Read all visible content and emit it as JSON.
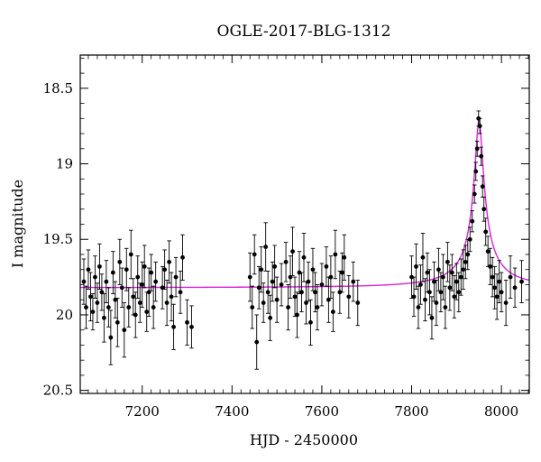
{
  "chart_data": {
    "type": "scatter",
    "title": "OGLE-2017-BLG-1312",
    "xlabel": "HJD - 2450000",
    "ylabel": "I magnitude",
    "xlim": [
      7062,
      8062
    ],
    "ylim": [
      20.52,
      18.28
    ],
    "y_inverted": true,
    "x_ticks": [
      "7200",
      "7400",
      "7600",
      "7800",
      "8000"
    ],
    "y_ticks": [
      "18.5",
      "19",
      "19.5",
      "20",
      "20.5"
    ],
    "grid": false,
    "colors": {
      "data": "#000000",
      "model": "#dd22dd",
      "axes": "#000000"
    },
    "series": [
      {
        "points": [
          {
            "x": 7070,
            "y": 19.78,
            "err": 0.15
          },
          {
            "x": 7075,
            "y": 19.95,
            "err": 0.14
          },
          {
            "x": 7080,
            "y": 19.7,
            "err": 0.13
          },
          {
            "x": 7085,
            "y": 19.88,
            "err": 0.16
          },
          {
            "x": 7090,
            "y": 19.98,
            "err": 0.12
          },
          {
            "x": 7095,
            "y": 19.75,
            "err": 0.14
          },
          {
            "x": 7100,
            "y": 19.92,
            "err": 0.13
          },
          {
            "x": 7105,
            "y": 19.68,
            "err": 0.15
          },
          {
            "x": 7110,
            "y": 19.85,
            "err": 0.12
          },
          {
            "x": 7115,
            "y": 20.02,
            "err": 0.16
          },
          {
            "x": 7120,
            "y": 19.78,
            "err": 0.14
          },
          {
            "x": 7125,
            "y": 19.95,
            "err": 0.13
          },
          {
            "x": 7130,
            "y": 20.15,
            "err": 0.18
          },
          {
            "x": 7135,
            "y": 19.72,
            "err": 0.14
          },
          {
            "x": 7140,
            "y": 19.9,
            "err": 0.12
          },
          {
            "x": 7145,
            "y": 20.05,
            "err": 0.16
          },
          {
            "x": 7150,
            "y": 19.65,
            "err": 0.15
          },
          {
            "x": 7155,
            "y": 19.82,
            "err": 0.13
          },
          {
            "x": 7160,
            "y": 20.1,
            "err": 0.18
          },
          {
            "x": 7165,
            "y": 19.7,
            "err": 0.14
          },
          {
            "x": 7170,
            "y": 19.95,
            "err": 0.13
          },
          {
            "x": 7175,
            "y": 19.6,
            "err": 0.16
          },
          {
            "x": 7180,
            "y": 19.88,
            "err": 0.12
          },
          {
            "x": 7185,
            "y": 20.0,
            "err": 0.15
          },
          {
            "x": 7190,
            "y": 19.75,
            "err": 0.14
          },
          {
            "x": 7195,
            "y": 19.92,
            "err": 0.13
          },
          {
            "x": 7200,
            "y": 19.8,
            "err": 0.15
          },
          {
            "x": 7205,
            "y": 19.68,
            "err": 0.14
          },
          {
            "x": 7210,
            "y": 19.98,
            "err": 0.13
          },
          {
            "x": 7215,
            "y": 19.85,
            "err": 0.16
          },
          {
            "x": 7220,
            "y": 19.72,
            "err": 0.12
          },
          {
            "x": 7225,
            "y": 19.95,
            "err": 0.14
          },
          {
            "x": 7230,
            "y": 19.78,
            "err": 0.13
          },
          {
            "x": 7245,
            "y": 19.82,
            "err": 0.14
          },
          {
            "x": 7250,
            "y": 19.7,
            "err": 0.13
          },
          {
            "x": 7255,
            "y": 19.92,
            "err": 0.15
          },
          {
            "x": 7260,
            "y": 19.65,
            "err": 0.14
          },
          {
            "x": 7265,
            "y": 19.88,
            "err": 0.16
          },
          {
            "x": 7270,
            "y": 20.08,
            "err": 0.15
          },
          {
            "x": 7275,
            "y": 19.75,
            "err": 0.13
          },
          {
            "x": 7285,
            "y": 19.85,
            "err": 0.14
          },
          {
            "x": 7290,
            "y": 19.62,
            "err": 0.15
          },
          {
            "x": 7300,
            "y": 20.05,
            "err": 0.15
          },
          {
            "x": 7310,
            "y": 20.08,
            "err": 0.14
          },
          {
            "x": 7440,
            "y": 19.75,
            "err": 0.16
          },
          {
            "x": 7445,
            "y": 19.95,
            "err": 0.14
          },
          {
            "x": 7450,
            "y": 19.6,
            "err": 0.13
          },
          {
            "x": 7455,
            "y": 20.18,
            "err": 0.18
          },
          {
            "x": 7460,
            "y": 19.82,
            "err": 0.14
          },
          {
            "x": 7465,
            "y": 19.7,
            "err": 0.15
          },
          {
            "x": 7470,
            "y": 19.92,
            "err": 0.13
          },
          {
            "x": 7475,
            "y": 19.55,
            "err": 0.16
          },
          {
            "x": 7480,
            "y": 19.85,
            "err": 0.14
          },
          {
            "x": 7485,
            "y": 20.02,
            "err": 0.15
          },
          {
            "x": 7490,
            "y": 19.78,
            "err": 0.13
          },
          {
            "x": 7495,
            "y": 19.68,
            "err": 0.14
          },
          {
            "x": 7500,
            "y": 19.9,
            "err": 0.15
          },
          {
            "x": 7510,
            "y": 19.8,
            "err": 0.14
          },
          {
            "x": 7520,
            "y": 19.65,
            "err": 0.13
          },
          {
            "x": 7525,
            "y": 19.95,
            "err": 0.15
          },
          {
            "x": 7530,
            "y": 19.75,
            "err": 0.14
          },
          {
            "x": 7535,
            "y": 19.58,
            "err": 0.16
          },
          {
            "x": 7540,
            "y": 19.88,
            "err": 0.13
          },
          {
            "x": 7545,
            "y": 20.0,
            "err": 0.15
          },
          {
            "x": 7550,
            "y": 19.72,
            "err": 0.14
          },
          {
            "x": 7555,
            "y": 19.85,
            "err": 0.13
          },
          {
            "x": 7560,
            "y": 19.62,
            "err": 0.16
          },
          {
            "x": 7565,
            "y": 19.92,
            "err": 0.14
          },
          {
            "x": 7570,
            "y": 19.78,
            "err": 0.13
          },
          {
            "x": 7575,
            "y": 20.05,
            "err": 0.15
          },
          {
            "x": 7580,
            "y": 19.7,
            "err": 0.14
          },
          {
            "x": 7585,
            "y": 19.85,
            "err": 0.13
          },
          {
            "x": 7590,
            "y": 19.95,
            "err": 0.15
          },
          {
            "x": 7600,
            "y": 19.8,
            "err": 0.14
          },
          {
            "x": 7610,
            "y": 19.68,
            "err": 0.13
          },
          {
            "x": 7615,
            "y": 19.9,
            "err": 0.15
          },
          {
            "x": 7620,
            "y": 19.75,
            "err": 0.14
          },
          {
            "x": 7625,
            "y": 19.98,
            "err": 0.13
          },
          {
            "x": 7630,
            "y": 19.6,
            "err": 0.16
          },
          {
            "x": 7640,
            "y": 19.85,
            "err": 0.14
          },
          {
            "x": 7645,
            "y": 19.72,
            "err": 0.13
          },
          {
            "x": 7650,
            "y": 19.62,
            "err": 0.15
          },
          {
            "x": 7660,
            "y": 19.88,
            "err": 0.14
          },
          {
            "x": 7670,
            "y": 19.78,
            "err": 0.13
          },
          {
            "x": 7680,
            "y": 19.92,
            "err": 0.15
          },
          {
            "x": 7800,
            "y": 19.75,
            "err": 0.14
          },
          {
            "x": 7805,
            "y": 19.88,
            "err": 0.13
          },
          {
            "x": 7810,
            "y": 19.68,
            "err": 0.15
          },
          {
            "x": 7815,
            "y": 19.95,
            "err": 0.14
          },
          {
            "x": 7820,
            "y": 19.8,
            "err": 0.13
          },
          {
            "x": 7825,
            "y": 19.62,
            "err": 0.16
          },
          {
            "x": 7830,
            "y": 19.9,
            "err": 0.14
          },
          {
            "x": 7835,
            "y": 19.72,
            "err": 0.13
          },
          {
            "x": 7840,
            "y": 19.85,
            "err": 0.15
          },
          {
            "x": 7845,
            "y": 20.02,
            "err": 0.14
          },
          {
            "x": 7850,
            "y": 19.78,
            "err": 0.13
          },
          {
            "x": 7855,
            "y": 19.92,
            "err": 0.15
          },
          {
            "x": 7860,
            "y": 19.7,
            "err": 0.14
          },
          {
            "x": 7865,
            "y": 19.85,
            "err": 0.13
          },
          {
            "x": 7870,
            "y": 19.75,
            "err": 0.15
          },
          {
            "x": 7875,
            "y": 19.95,
            "err": 0.14
          },
          {
            "x": 7880,
            "y": 19.65,
            "err": 0.13
          },
          {
            "x": 7885,
            "y": 19.82,
            "err": 0.15
          },
          {
            "x": 7890,
            "y": 19.72,
            "err": 0.12
          },
          {
            "x": 7895,
            "y": 19.88,
            "err": 0.14
          },
          {
            "x": 7900,
            "y": 19.78,
            "err": 0.12
          },
          {
            "x": 7905,
            "y": 19.85,
            "err": 0.13
          },
          {
            "x": 7910,
            "y": 19.75,
            "err": 0.12
          },
          {
            "x": 7915,
            "y": 19.7,
            "err": 0.13
          },
          {
            "x": 7920,
            "y": 19.65,
            "err": 0.11
          },
          {
            "x": 7925,
            "y": 19.6,
            "err": 0.1
          },
          {
            "x": 7930,
            "y": 19.5,
            "err": 0.08
          },
          {
            "x": 7935,
            "y": 19.38,
            "err": 0.07
          },
          {
            "x": 7940,
            "y": 19.2,
            "err": 0.06
          },
          {
            "x": 7943,
            "y": 19.05,
            "err": 0.06
          },
          {
            "x": 7946,
            "y": 18.9,
            "err": 0.05
          },
          {
            "x": 7949,
            "y": 18.7,
            "err": 0.05
          },
          {
            "x": 7952,
            "y": 18.75,
            "err": 0.05
          },
          {
            "x": 7955,
            "y": 18.95,
            "err": 0.06
          },
          {
            "x": 7958,
            "y": 19.15,
            "err": 0.07
          },
          {
            "x": 7961,
            "y": 19.3,
            "err": 0.08
          },
          {
            "x": 7965,
            "y": 19.45,
            "err": 0.09
          },
          {
            "x": 7970,
            "y": 19.58,
            "err": 0.1
          },
          {
            "x": 7975,
            "y": 19.68,
            "err": 0.12
          },
          {
            "x": 7980,
            "y": 19.75,
            "err": 0.13
          },
          {
            "x": 7985,
            "y": 19.82,
            "err": 0.14
          },
          {
            "x": 7990,
            "y": 19.88,
            "err": 0.15
          },
          {
            "x": 7995,
            "y": 19.78,
            "err": 0.14
          },
          {
            "x": 8000,
            "y": 19.85,
            "err": 0.13
          },
          {
            "x": 8010,
            "y": 19.92,
            "err": 0.15
          },
          {
            "x": 8020,
            "y": 19.75,
            "err": 0.14
          },
          {
            "x": 8030,
            "y": 19.82,
            "err": 0.13
          },
          {
            "x": 8045,
            "y": 19.78,
            "err": 0.14
          }
        ]
      }
    ],
    "model": {
      "baseline": 19.82,
      "peak_x": 7950,
      "peak_y": 18.7,
      "x_range": [
        7062,
        8062
      ]
    }
  }
}
